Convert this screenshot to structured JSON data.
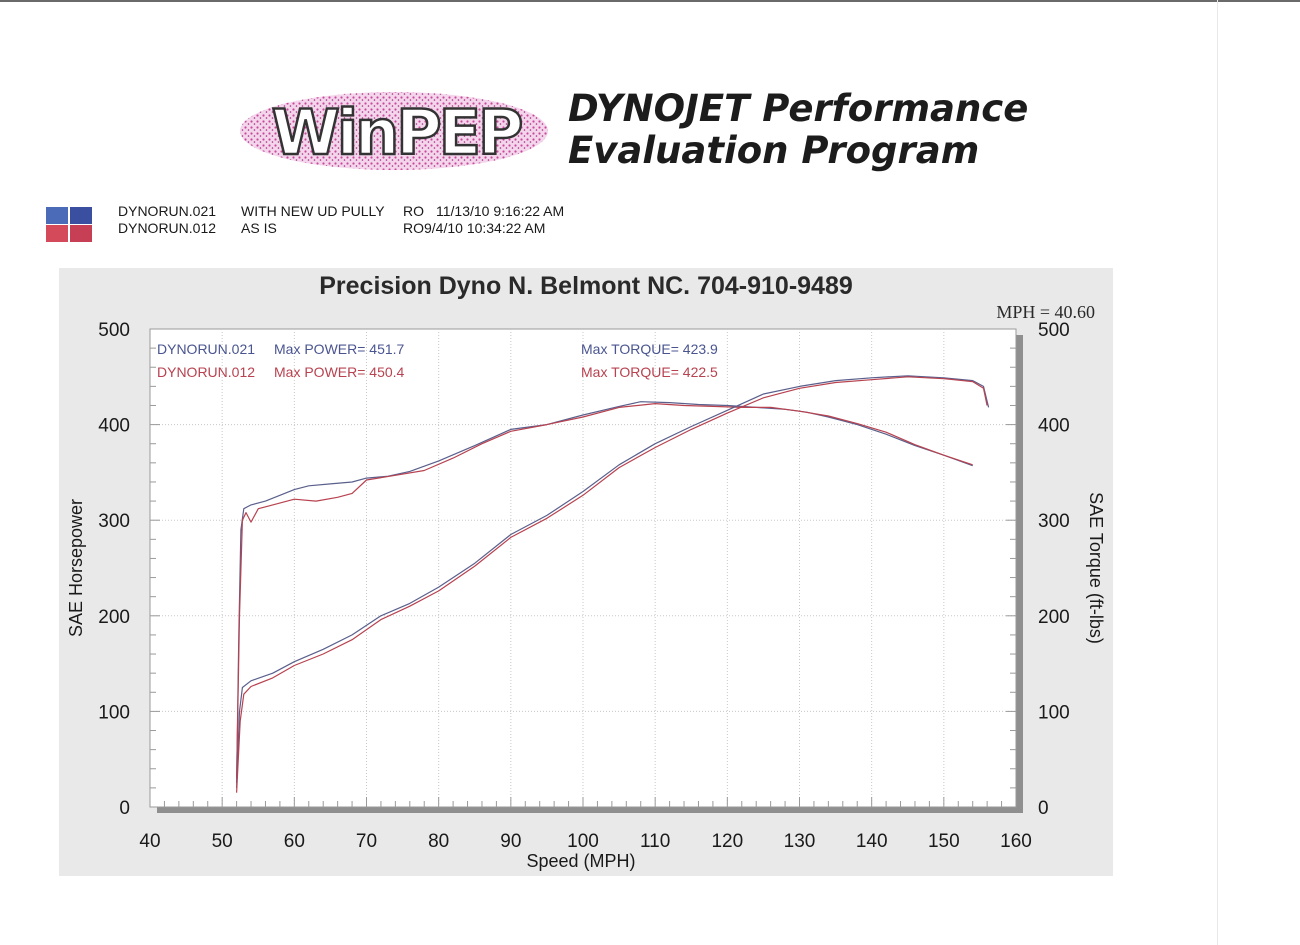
{
  "header": {
    "logo_text": "WinPEP",
    "title_line1": "DYNOJET Performance",
    "title_line2": "Evaluation Program"
  },
  "runs": [
    {
      "file": "DYNORUN.021",
      "note": "WITH NEW UD PULLY",
      "tag": "RO",
      "timestamp": "11/13/10 9:16:22 AM",
      "swatch_top": "#4b6bb8",
      "swatch_bottom": "#d54a5a"
    },
    {
      "file": "DYNORUN.012",
      "note": "AS IS",
      "tag": "RO",
      "timestamp": "9/4/10 10:34:22 AM",
      "swatch_top": "#3a4fa0",
      "swatch_bottom": "#c73f55"
    }
  ],
  "colors": {
    "run1": "#5a5f8c",
    "run2": "#b8424f"
  },
  "chart_data": {
    "type": "line",
    "title": "Precision Dyno  N. Belmont NC. 704-910-9489",
    "readout": "MPH = 40.60",
    "xlabel": "Speed (MPH)",
    "ylabel_left": "SAE Horsepower",
    "ylabel_right": "SAE Torque (ft-lbs)",
    "xlim": [
      40,
      160
    ],
    "ylim": [
      0,
      500
    ],
    "x_ticks": [
      40,
      50,
      60,
      70,
      80,
      90,
      100,
      110,
      120,
      130,
      140,
      150,
      160
    ],
    "y_ticks": [
      0,
      100,
      200,
      300,
      400,
      500
    ],
    "grid": true,
    "annotations": [
      {
        "run": "DYNORUN.021",
        "power_label": "Max POWER= 451.7",
        "torque_label": "Max TORQUE= 423.9"
      },
      {
        "run": "DYNORUN.012",
        "power_label": "Max POWER= 450.4",
        "torque_label": "Max TORQUE= 422.5"
      }
    ],
    "series": [
      {
        "name": "DYNORUN.021",
        "measure": "torque",
        "color": "#5a5f8c",
        "points": [
          [
            52,
            25
          ],
          [
            52.3,
            180
          ],
          [
            52.6,
            290
          ],
          [
            53,
            312
          ],
          [
            54,
            316
          ],
          [
            56,
            320
          ],
          [
            58,
            326
          ],
          [
            60,
            332
          ],
          [
            62,
            336
          ],
          [
            65,
            338
          ],
          [
            68,
            340
          ],
          [
            70,
            344
          ],
          [
            73,
            346
          ],
          [
            76,
            351
          ],
          [
            80,
            362
          ],
          [
            85,
            378
          ],
          [
            90,
            395
          ],
          [
            95,
            400
          ],
          [
            100,
            410
          ],
          [
            105,
            419
          ],
          [
            108,
            424
          ],
          [
            112,
            423
          ],
          [
            116,
            421
          ],
          [
            120,
            420
          ],
          [
            124,
            418
          ],
          [
            128,
            416
          ],
          [
            131,
            413
          ],
          [
            134,
            408
          ],
          [
            138,
            400
          ],
          [
            142,
            390
          ],
          [
            146,
            378
          ],
          [
            150,
            368
          ],
          [
            154,
            357
          ]
        ]
      },
      {
        "name": "DYNORUN.012",
        "measure": "torque",
        "color": "#b8424f",
        "points": [
          [
            52,
            30
          ],
          [
            52.4,
            200
          ],
          [
            52.8,
            300
          ],
          [
            53.3,
            308
          ],
          [
            54,
            298
          ],
          [
            55,
            312
          ],
          [
            57,
            316
          ],
          [
            60,
            322
          ],
          [
            63,
            320
          ],
          [
            66,
            324
          ],
          [
            68,
            328
          ],
          [
            70,
            342
          ],
          [
            74,
            347
          ],
          [
            78,
            352
          ],
          [
            82,
            365
          ],
          [
            86,
            380
          ],
          [
            90,
            393
          ],
          [
            95,
            400
          ],
          [
            100,
            408
          ],
          [
            105,
            418
          ],
          [
            110,
            422
          ],
          [
            114,
            420
          ],
          [
            118,
            419
          ],
          [
            122,
            418
          ],
          [
            126,
            418
          ],
          [
            130,
            414
          ],
          [
            134,
            409
          ],
          [
            138,
            401
          ],
          [
            142,
            392
          ],
          [
            146,
            379
          ],
          [
            150,
            368
          ],
          [
            154,
            358
          ]
        ]
      },
      {
        "name": "DYNORUN.021",
        "measure": "power",
        "color": "#5a5f8c",
        "points": [
          [
            52,
            20
          ],
          [
            52.4,
            100
          ],
          [
            52.8,
            125
          ],
          [
            54,
            132
          ],
          [
            57,
            140
          ],
          [
            60,
            152
          ],
          [
            64,
            165
          ],
          [
            68,
            180
          ],
          [
            72,
            200
          ],
          [
            76,
            213
          ],
          [
            80,
            230
          ],
          [
            85,
            255
          ],
          [
            90,
            285
          ],
          [
            95,
            305
          ],
          [
            100,
            330
          ],
          [
            105,
            358
          ],
          [
            110,
            380
          ],
          [
            115,
            398
          ],
          [
            120,
            415
          ],
          [
            125,
            432
          ],
          [
            130,
            440
          ],
          [
            135,
            446
          ],
          [
            140,
            449
          ],
          [
            145,
            451
          ],
          [
            150,
            449
          ],
          [
            154,
            446
          ],
          [
            155.5,
            440
          ],
          [
            156.2,
            418
          ]
        ]
      },
      {
        "name": "DYNORUN.012",
        "measure": "power",
        "color": "#b8424f",
        "points": [
          [
            52,
            15
          ],
          [
            52.5,
            90
          ],
          [
            53,
            118
          ],
          [
            54,
            126
          ],
          [
            57,
            135
          ],
          [
            60,
            148
          ],
          [
            64,
            160
          ],
          [
            68,
            175
          ],
          [
            72,
            196
          ],
          [
            76,
            210
          ],
          [
            80,
            226
          ],
          [
            85,
            252
          ],
          [
            90,
            282
          ],
          [
            95,
            302
          ],
          [
            100,
            326
          ],
          [
            105,
            355
          ],
          [
            110,
            376
          ],
          [
            115,
            395
          ],
          [
            120,
            412
          ],
          [
            125,
            428
          ],
          [
            130,
            438
          ],
          [
            135,
            444
          ],
          [
            140,
            447
          ],
          [
            145,
            450
          ],
          [
            150,
            448
          ],
          [
            154,
            445
          ],
          [
            155.5,
            438
          ],
          [
            156,
            420
          ]
        ]
      }
    ]
  }
}
